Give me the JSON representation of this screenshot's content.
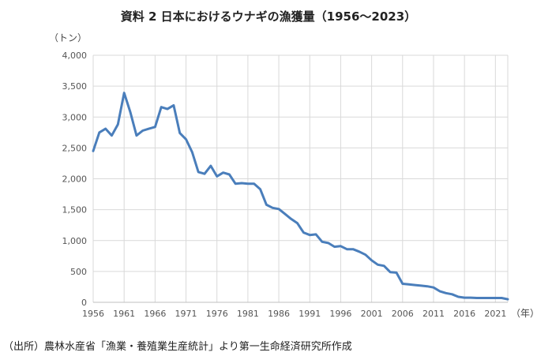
{
  "chart_data": {
    "type": "line",
    "title": "資料 2  日本におけるウナギの漁獲量（1956～2023）",
    "y_unit": "（トン）",
    "x_unit": "（年）",
    "source": "（出所）農林水産省「漁業・養殖業生産統計」より第一生命経済研究所作成",
    "ylim": [
      0,
      4000
    ],
    "y_ticks": [
      "0",
      "500",
      "1,000",
      "1,500",
      "2,000",
      "2,500",
      "3,000",
      "3,500",
      "4,000"
    ],
    "y_tick_values": [
      0,
      500,
      1000,
      1500,
      2000,
      2500,
      3000,
      3500,
      4000
    ],
    "x_ticks": [
      "1956",
      "1961",
      "1966",
      "1971",
      "1976",
      "1981",
      "1986",
      "1991",
      "1996",
      "2001",
      "2006",
      "2011",
      "2016",
      "2021"
    ],
    "xlim": [
      1956,
      2023
    ],
    "grid": "vertical-and-horizontal",
    "line_color": "#4a7ebb",
    "series": [
      {
        "x": [
          1956,
          1957,
          1958,
          1959,
          1960,
          1961,
          1962,
          1963,
          1964,
          1965,
          1966,
          1967,
          1968,
          1969,
          1970,
          1971,
          1972,
          1973,
          1974,
          1975,
          1976,
          1977,
          1978,
          1979,
          1980,
          1981,
          1982,
          1983,
          1984,
          1985,
          1986,
          1987,
          1988,
          1989,
          1990,
          1991,
          1992,
          1993,
          1994,
          1995,
          1996,
          1997,
          1998,
          1999,
          2000,
          2001,
          2002,
          2003,
          2004,
          2005,
          2006,
          2007,
          2008,
          2009,
          2010,
          2011,
          2012,
          2013,
          2014,
          2015,
          2016,
          2017,
          2018,
          2019,
          2020,
          2021,
          2022,
          2023
        ],
        "y": [
          2450,
          2750,
          2810,
          2700,
          2880,
          3390,
          3080,
          2700,
          2780,
          2810,
          2840,
          3160,
          3130,
          3190,
          2740,
          2640,
          2430,
          2110,
          2080,
          2210,
          2040,
          2100,
          2070,
          1920,
          1930,
          1920,
          1920,
          1830,
          1580,
          1530,
          1510,
          1430,
          1350,
          1280,
          1130,
          1090,
          1100,
          980,
          960,
          900,
          910,
          860,
          860,
          820,
          770,
          680,
          610,
          590,
          490,
          480,
          300,
          290,
          280,
          270,
          260,
          240,
          180,
          150,
          130,
          90,
          75,
          75,
          70,
          70,
          70,
          70,
          70,
          50
        ]
      }
    ]
  }
}
